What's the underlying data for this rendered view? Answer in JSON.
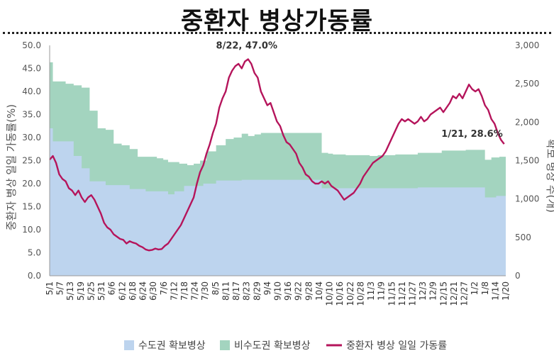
{
  "chart_data": {
    "type": "area",
    "title": "중환자 병상가동률",
    "ylabel_left": "중환자 병상 일일 가동률(%)",
    "ylabel_right": "확보 병상 수(개)",
    "y_left_lim": [
      0,
      50
    ],
    "y_left_ticks": [
      "0.0",
      "5.0",
      "10.0",
      "15.0",
      "20.0",
      "25.0",
      "30.0",
      "35.0",
      "40.0",
      "45.0",
      "50.0"
    ],
    "y_right_lim": [
      0,
      3000
    ],
    "y_right_ticks": [
      "0",
      "500",
      "1,000",
      "1,500",
      "2,000",
      "2,500",
      "3,000"
    ],
    "x_tick_labels": [
      "5/1",
      "5/7",
      "5/13",
      "5/19",
      "5/25",
      "5/31",
      "6/6",
      "6/12",
      "6/18",
      "6/24",
      "6/30",
      "7/6",
      "7/12",
      "7/18",
      "7/24",
      "7/30",
      "8/5",
      "8/11",
      "8/17",
      "8/23",
      "8/29",
      "9/4",
      "9/10",
      "9/16",
      "9/22",
      "9/28",
      "10/4",
      "10/10",
      "10/16",
      "10/22",
      "10/28",
      "11/3",
      "11/9",
      "11/15",
      "11/21",
      "11/27",
      "12/3",
      "12/9",
      "12/15",
      "12/21",
      "12/27",
      "1/2",
      "1/8",
      "1/14",
      "1/20"
    ],
    "series": [
      {
        "name": "수도권 확보병상",
        "kind": "area",
        "axis": "right",
        "color": "#BDD4EE",
        "steps": [
          [
            0,
            1920
          ],
          [
            2,
            1750
          ],
          [
            10,
            1750
          ],
          [
            15,
            1560
          ],
          [
            20,
            1400
          ],
          [
            25,
            1230
          ],
          [
            35,
            1180
          ],
          [
            50,
            1130
          ],
          [
            60,
            1100
          ],
          [
            67,
            1100
          ],
          [
            74,
            1060
          ],
          [
            78,
            1100
          ],
          [
            84,
            1170
          ],
          [
            96,
            1200
          ],
          [
            104,
            1240
          ],
          [
            120,
            1250
          ],
          [
            132,
            1250
          ],
          [
            148,
            1250
          ],
          [
            164,
            1250
          ],
          [
            170,
            1140
          ],
          [
            190,
            1140
          ],
          [
            230,
            1150
          ],
          [
            260,
            1150
          ],
          [
            272,
            1020
          ],
          [
            279,
            1040
          ],
          [
            285,
            1050
          ]
        ]
      },
      {
        "name": "비수도권 확보병상",
        "kind": "area",
        "axis": "right",
        "color": "#A3D4BF",
        "steps": [
          [
            0,
            2780
          ],
          [
            2,
            2530
          ],
          [
            10,
            2500
          ],
          [
            15,
            2480
          ],
          [
            20,
            2450
          ],
          [
            25,
            2150
          ],
          [
            30,
            1920
          ],
          [
            35,
            1900
          ],
          [
            40,
            1720
          ],
          [
            45,
            1700
          ],
          [
            50,
            1650
          ],
          [
            55,
            1550
          ],
          [
            67,
            1530
          ],
          [
            71,
            1510
          ],
          [
            74,
            1480
          ],
          [
            81,
            1460
          ],
          [
            86,
            1440
          ],
          [
            90,
            1460
          ],
          [
            94,
            1500
          ],
          [
            98,
            1620
          ],
          [
            104,
            1700
          ],
          [
            110,
            1780
          ],
          [
            115,
            1800
          ],
          [
            120,
            1850
          ],
          [
            124,
            1820
          ],
          [
            128,
            1840
          ],
          [
            132,
            1860
          ],
          [
            148,
            1860
          ],
          [
            164,
            1860
          ],
          [
            170,
            1600
          ],
          [
            174,
            1590
          ],
          [
            177,
            1580
          ],
          [
            185,
            1570
          ],
          [
            200,
            1560
          ],
          [
            205,
            1570
          ],
          [
            216,
            1580
          ],
          [
            230,
            1600
          ],
          [
            245,
            1630
          ],
          [
            260,
            1640
          ],
          [
            272,
            1510
          ],
          [
            276,
            1540
          ],
          [
            281,
            1550
          ],
          [
            285,
            1560
          ]
        ]
      },
      {
        "name": "중환자 병상 일일 가동률",
        "kind": "line",
        "axis": "left",
        "color": "#B5145B",
        "points": [
          [
            0,
            25.2
          ],
          [
            2,
            26.0
          ],
          [
            4,
            24.5
          ],
          [
            6,
            22.0
          ],
          [
            8,
            21.0
          ],
          [
            10,
            20.5
          ],
          [
            12,
            19.0
          ],
          [
            14,
            18.5
          ],
          [
            16,
            17.5
          ],
          [
            18,
            18.5
          ],
          [
            20,
            17.0
          ],
          [
            22,
            16.0
          ],
          [
            24,
            17.0
          ],
          [
            26,
            17.5
          ],
          [
            28,
            16.5
          ],
          [
            30,
            15.0
          ],
          [
            32,
            13.5
          ],
          [
            34,
            11.5
          ],
          [
            36,
            10.5
          ],
          [
            38,
            10.0
          ],
          [
            40,
            9.0
          ],
          [
            42,
            8.5
          ],
          [
            44,
            8.0
          ],
          [
            46,
            7.8
          ],
          [
            48,
            7.0
          ],
          [
            50,
            7.5
          ],
          [
            52,
            7.2
          ],
          [
            54,
            7.0
          ],
          [
            56,
            6.5
          ],
          [
            58,
            6.2
          ],
          [
            60,
            5.7
          ],
          [
            62,
            5.5
          ],
          [
            64,
            5.6
          ],
          [
            66,
            5.9
          ],
          [
            68,
            5.7
          ],
          [
            70,
            5.8
          ],
          [
            72,
            6.5
          ],
          [
            74,
            7.0
          ],
          [
            76,
            8.0
          ],
          [
            78,
            9.0
          ],
          [
            80,
            10.0
          ],
          [
            82,
            11.0
          ],
          [
            84,
            12.5
          ],
          [
            86,
            14.0
          ],
          [
            88,
            15.5
          ],
          [
            90,
            17.0
          ],
          [
            92,
            20.0
          ],
          [
            94,
            22.5
          ],
          [
            96,
            24.0
          ],
          [
            98,
            26.5
          ],
          [
            100,
            28.5
          ],
          [
            102,
            31.0
          ],
          [
            104,
            33.0
          ],
          [
            106,
            36.5
          ],
          [
            108,
            38.5
          ],
          [
            110,
            40.0
          ],
          [
            112,
            43.0
          ],
          [
            114,
            44.5
          ],
          [
            116,
            45.5
          ],
          [
            118,
            46.0
          ],
          [
            120,
            45.0
          ],
          [
            122,
            46.5
          ],
          [
            124,
            47.0
          ],
          [
            126,
            46.0
          ],
          [
            128,
            44.0
          ],
          [
            130,
            43.0
          ],
          [
            132,
            40.0
          ],
          [
            134,
            38.5
          ],
          [
            136,
            37.0
          ],
          [
            138,
            37.5
          ],
          [
            140,
            35.5
          ],
          [
            142,
            33.5
          ],
          [
            144,
            32.5
          ],
          [
            146,
            30.5
          ],
          [
            148,
            29.0
          ],
          [
            150,
            28.5
          ],
          [
            152,
            27.5
          ],
          [
            154,
            26.5
          ],
          [
            156,
            24.5
          ],
          [
            158,
            23.5
          ],
          [
            160,
            22.0
          ],
          [
            162,
            21.5
          ],
          [
            164,
            20.5
          ],
          [
            166,
            20.0
          ],
          [
            168,
            20.0
          ],
          [
            170,
            20.5
          ],
          [
            172,
            20.0
          ],
          [
            174,
            20.5
          ],
          [
            176,
            19.5
          ],
          [
            178,
            19.0
          ],
          [
            180,
            18.5
          ],
          [
            182,
            17.5
          ],
          [
            184,
            16.5
          ],
          [
            186,
            17.0
          ],
          [
            188,
            17.5
          ],
          [
            190,
            18.0
          ],
          [
            192,
            19.0
          ],
          [
            194,
            20.0
          ],
          [
            196,
            21.5
          ],
          [
            198,
            22.5
          ],
          [
            200,
            23.5
          ],
          [
            202,
            24.5
          ],
          [
            204,
            25.0
          ],
          [
            206,
            25.5
          ],
          [
            208,
            26.0
          ],
          [
            210,
            27.0
          ],
          [
            212,
            28.5
          ],
          [
            214,
            30.0
          ],
          [
            216,
            31.5
          ],
          [
            218,
            33.0
          ],
          [
            220,
            34.0
          ],
          [
            222,
            33.5
          ],
          [
            224,
            34.0
          ],
          [
            226,
            33.5
          ],
          [
            228,
            33.0
          ],
          [
            230,
            33.5
          ],
          [
            232,
            34.5
          ],
          [
            234,
            33.5
          ],
          [
            236,
            34.0
          ],
          [
            238,
            35.0
          ],
          [
            240,
            35.5
          ],
          [
            242,
            36.0
          ],
          [
            244,
            36.5
          ],
          [
            246,
            35.5
          ],
          [
            248,
            36.5
          ],
          [
            250,
            37.5
          ],
          [
            252,
            39.0
          ],
          [
            254,
            38.5
          ],
          [
            256,
            39.5
          ],
          [
            258,
            38.5
          ],
          [
            260,
            40.0
          ],
          [
            262,
            41.5
          ],
          [
            264,
            40.5
          ],
          [
            266,
            40.0
          ],
          [
            268,
            40.5
          ],
          [
            270,
            39.0
          ],
          [
            272,
            37.0
          ],
          [
            274,
            36.0
          ],
          [
            276,
            34.0
          ],
          [
            278,
            33.0
          ],
          [
            280,
            31.0
          ],
          [
            282,
            29.5
          ],
          [
            284,
            28.6
          ]
        ]
      }
    ],
    "annotations": [
      {
        "text": "8/22, 47.0%",
        "x": 124,
        "y": 47.0
      },
      {
        "text": "1/21, 28.6%",
        "x": 284,
        "y": 28.6
      }
    ],
    "legend": {
      "placement": "bottom",
      "items": [
        "수도권 확보병상",
        "비수도권 확보병상",
        "중환자 병상 일일 가동률"
      ]
    },
    "grid": false,
    "colors": {
      "capital_area": "#BDD4EE",
      "non_capital_area": "#A3D4BF",
      "rate_line": "#B5145B"
    }
  }
}
